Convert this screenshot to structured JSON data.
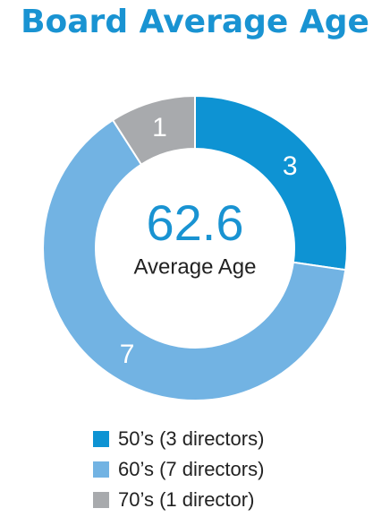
{
  "chart_data": {
    "type": "pie",
    "title": "Board Average Age",
    "center_value": "62.6",
    "center_label": "Average Age",
    "categories": [
      "50’s (3 directors)",
      "60’s (7 directors)",
      "70’s (1 director)"
    ],
    "values": [
      3,
      7,
      1
    ],
    "colors": [
      "#0e93d3",
      "#72b3e3",
      "#a8aaad"
    ],
    "donut": true
  }
}
